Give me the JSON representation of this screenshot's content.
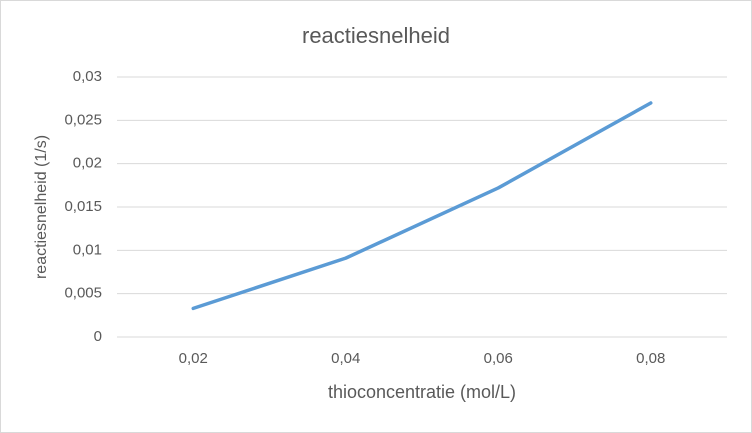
{
  "chart_data": {
    "type": "line",
    "title": "reactiesnelheid",
    "x_label": "thioconcentratie (mol/L)",
    "y_label": "reactiesnelheid (1/s)",
    "categories": [
      "0,02",
      "0,04",
      "0,06",
      "0,08"
    ],
    "series": [
      {
        "name": "reactiesnelheid",
        "color": "#5b9bd5",
        "values": [
          0.0033,
          0.0091,
          0.0172,
          0.027
        ]
      }
    ],
    "ylim": [
      0,
      0.03
    ],
    "yticks": [
      0,
      {
        "value": 0.005,
        "label": "0,005"
      },
      {
        "value": 0.01,
        "label": "0,01"
      },
      {
        "value": 0.015,
        "label": "0,015"
      },
      {
        "value": 0.02,
        "label": "0,02"
      },
      {
        "value": 0.025,
        "label": "0,025"
      },
      {
        "value": 0.03,
        "label": "0,03"
      }
    ],
    "grid": true
  }
}
